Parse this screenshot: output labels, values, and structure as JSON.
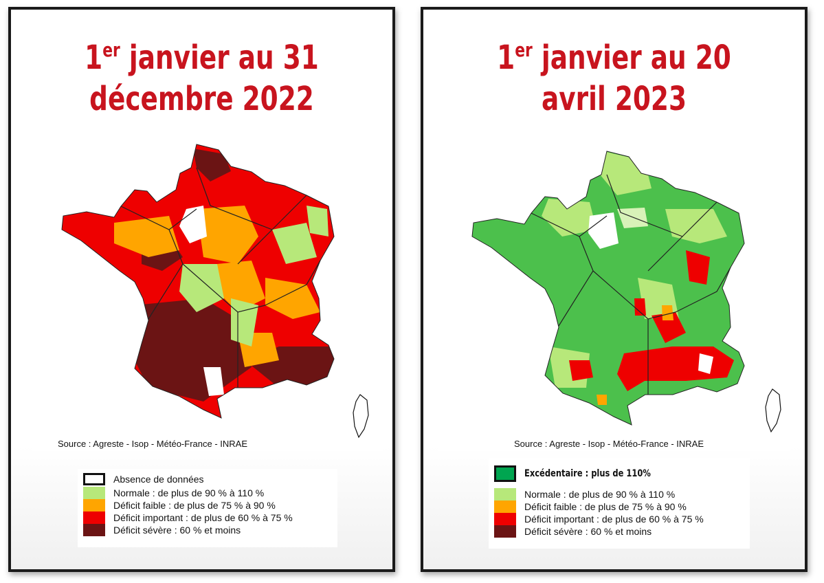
{
  "panels": [
    {
      "title_prefix": "1",
      "title_sup": "er",
      "title_line1_rest": " janvier au 31",
      "title_line2": "décembre 2022",
      "source": "Source : Agreste - Isop - Météo-France - INRAE",
      "legend": [
        {
          "color": "#ffffff",
          "label": "Absence de données"
        },
        {
          "color": "#b7e87a",
          "label": "Normale : de plus de 90 % à 110 %"
        },
        {
          "color": "#ffa500",
          "label": "Déficit faible : de plus de 75 % à 90 %"
        },
        {
          "color": "#ee0000",
          "label": "Déficit important : de plus de 60 % à 75 %"
        },
        {
          "color": "#6b1414",
          "label": "Déficit sévère : 60 % et moins"
        }
      ]
    },
    {
      "title_prefix": "1",
      "title_sup": "er",
      "title_line1_rest": " janvier au 20",
      "title_line2": "avril 2023",
      "source": "Source : Agreste - Isop - Météo-France - INRAE",
      "legend": [
        {
          "color": "#00a550",
          "label": "Excédentaire : plus de 110%"
        },
        {
          "color": "#b7e87a",
          "label": "Normale : de plus de 90 % à 110 %"
        },
        {
          "color": "#ffa500",
          "label": "Déficit faible : de plus de 75 % à 90 %"
        },
        {
          "color": "#ee0000",
          "label": "Déficit important : de plus de 60 % à 75 %"
        },
        {
          "color": "#6b1414",
          "label": "Déficit sévère : 60 % et moins"
        }
      ]
    }
  ]
}
